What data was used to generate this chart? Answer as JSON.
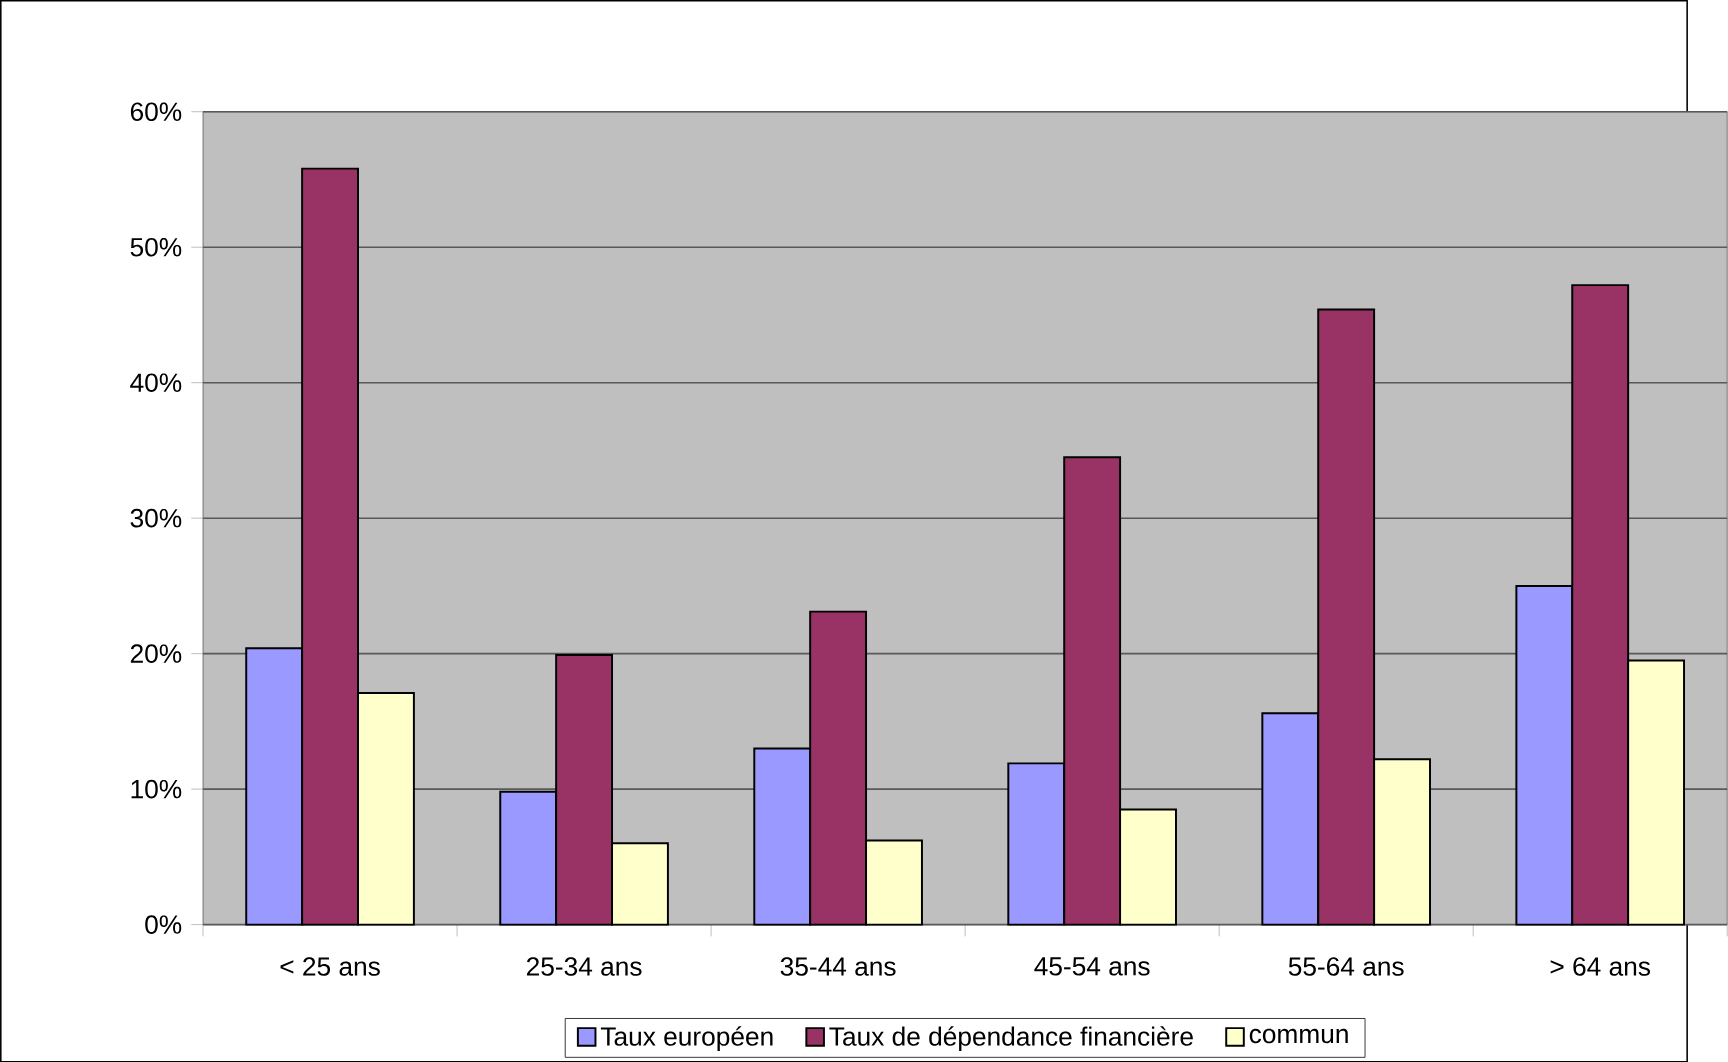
{
  "chart_data": {
    "type": "bar",
    "categories": [
      "< 25 ans",
      "25-34 ans",
      "35-44 ans",
      "45-54 ans",
      "55-64 ans",
      "> 64 ans"
    ],
    "series": [
      {
        "name": "Taux européen",
        "color": "#9999ff",
        "values": [
          20.4,
          9.8,
          13.0,
          11.9,
          15.6,
          25.0
        ]
      },
      {
        "name": "Taux de dépendance financière",
        "color": "#993366",
        "values": [
          55.8,
          19.9,
          23.1,
          34.5,
          45.4,
          47.2
        ]
      },
      {
        "name": "commun",
        "color": "#ffffcc",
        "values": [
          17.1,
          6.0,
          6.2,
          8.5,
          12.2,
          19.5
        ]
      }
    ],
    "ylim": [
      0,
      60
    ],
    "yticks": [
      {
        "value": 0,
        "label": "0%"
      },
      {
        "value": 10,
        "label": "10%"
      },
      {
        "value": 20,
        "label": "20%"
      },
      {
        "value": 30,
        "label": "30%"
      },
      {
        "value": 40,
        "label": "40%"
      },
      {
        "value": 50,
        "label": "50%"
      },
      {
        "value": 60,
        "label": "60%"
      }
    ],
    "grid": "y",
    "legend": "bottom"
  }
}
